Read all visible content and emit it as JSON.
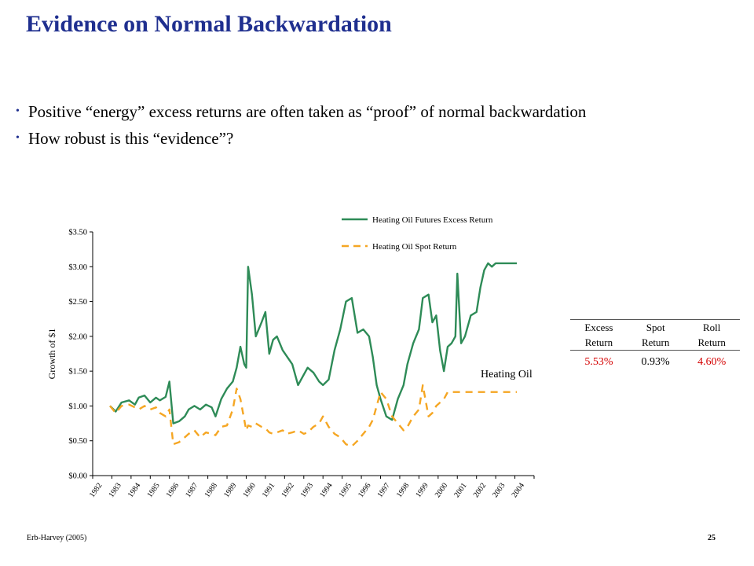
{
  "slide": {
    "title": "Evidence on Normal Backwardation",
    "bullets": [
      "Positive “energy” excess returns are often taken as “proof” of normal backwardation",
      "How robust is this “evidence”?"
    ],
    "footer_left": "Erb-Harvey (2005)",
    "page_number": "25"
  },
  "chart_data": {
    "type": "line",
    "ylabel": "Growth of $1",
    "annotation": "Heating Oil",
    "yticks": [
      "$0.00",
      "$0.50",
      "$1.00",
      "$1.50",
      "$2.00",
      "$2.50",
      "$3.00",
      "$3.50"
    ],
    "ylim": [
      0,
      3.5
    ],
    "xticks": [
      "1982",
      "1983",
      "1984",
      "1985",
      "1986",
      "1987",
      "1988",
      "1989",
      "1990",
      "1991",
      "1992",
      "1993",
      "1994",
      "1995",
      "1996",
      "1997",
      "1998",
      "1999",
      "2000",
      "2001",
      "2002",
      "2003",
      "2004"
    ],
    "x": [
      1982.9,
      1983.2,
      1983.5,
      1983.9,
      1984.2,
      1984.4,
      1984.7,
      1985.0,
      1985.3,
      1985.5,
      1985.8,
      1986.0,
      1986.2,
      1986.5,
      1986.8,
      1987.0,
      1987.3,
      1987.6,
      1987.9,
      1988.2,
      1988.4,
      1988.7,
      1989.0,
      1989.3,
      1989.5,
      1989.7,
      1989.9,
      1990.0,
      1990.1,
      1990.3,
      1990.5,
      1990.8,
      1991.0,
      1991.2,
      1991.4,
      1991.6,
      1991.9,
      1992.1,
      1992.4,
      1992.7,
      1993.0,
      1993.2,
      1993.5,
      1993.8,
      1994.0,
      1994.3,
      1994.6,
      1994.9,
      1995.2,
      1995.5,
      1995.8,
      1996.1,
      1996.4,
      1996.6,
      1996.8,
      1997.0,
      1997.3,
      1997.6,
      1997.9,
      1998.2,
      1998.4,
      1998.7,
      1999.0,
      1999.2,
      1999.5,
      1999.7,
      1999.9,
      2000.1,
      2000.3,
      2000.5,
      2000.7,
      2000.9,
      2001.0,
      2001.2,
      2001.4,
      2001.7,
      2002.0,
      2002.2,
      2002.4,
      2002.6,
      2002.8,
      2003.0,
      2003.3,
      2003.6,
      2003.9,
      2004.1
    ],
    "series": [
      {
        "name": "Heating Oil Futures Excess Return",
        "color": "#2e8b57",
        "style": "solid",
        "values": [
          1.0,
          0.92,
          1.05,
          1.08,
          1.02,
          1.12,
          1.15,
          1.05,
          1.12,
          1.08,
          1.13,
          1.35,
          0.75,
          0.78,
          0.85,
          0.95,
          1.0,
          0.95,
          1.02,
          0.98,
          0.85,
          1.1,
          1.25,
          1.35,
          1.55,
          1.85,
          1.6,
          1.55,
          3.0,
          2.6,
          2.0,
          2.2,
          2.35,
          1.75,
          1.95,
          2.0,
          1.8,
          1.72,
          1.6,
          1.3,
          1.45,
          1.55,
          1.48,
          1.35,
          1.3,
          1.38,
          1.8,
          2.1,
          2.5,
          2.55,
          2.05,
          2.1,
          2.0,
          1.7,
          1.3,
          1.1,
          0.85,
          0.8,
          1.1,
          1.3,
          1.6,
          1.9,
          2.1,
          2.55,
          2.6,
          2.2,
          2.3,
          1.8,
          1.5,
          1.85,
          1.9,
          2.0,
          2.9,
          1.9,
          2.0,
          2.3,
          2.35,
          2.7,
          2.95,
          3.05,
          3.0,
          3.05,
          3.05,
          3.05,
          3.05,
          3.05
        ]
      },
      {
        "name": "Heating Oil Spot Return",
        "color": "#f5a623",
        "style": "dashed",
        "values": [
          1.0,
          0.9,
          1.0,
          1.02,
          0.98,
          0.95,
          1.0,
          0.95,
          0.98,
          0.9,
          0.85,
          0.95,
          0.45,
          0.48,
          0.55,
          0.6,
          0.65,
          0.55,
          0.62,
          0.6,
          0.58,
          0.7,
          0.72,
          0.95,
          1.25,
          1.1,
          0.8,
          0.65,
          0.72,
          0.7,
          0.75,
          0.7,
          0.68,
          0.62,
          0.6,
          0.62,
          0.65,
          0.6,
          0.62,
          0.65,
          0.6,
          0.62,
          0.7,
          0.75,
          0.85,
          0.7,
          0.6,
          0.55,
          0.45,
          0.42,
          0.5,
          0.6,
          0.7,
          0.8,
          1.0,
          1.2,
          1.1,
          0.85,
          0.75,
          0.65,
          0.7,
          0.85,
          0.95,
          1.3,
          0.85,
          0.9,
          1.0,
          1.05,
          1.1,
          1.2,
          1.2,
          1.2,
          1.2,
          1.2,
          1.2,
          1.2,
          1.2,
          1.2,
          1.2,
          1.2,
          1.2,
          1.2,
          1.2,
          1.2,
          1.2,
          1.2
        ]
      }
    ],
    "legend_placement": "top",
    "grid": false,
    "table": {
      "headers": [
        [
          "Excess",
          "Return"
        ],
        [
          "Spot",
          "Return"
        ],
        [
          "Roll",
          "Return"
        ]
      ],
      "values": [
        "5.53%",
        "0.93%",
        "4.60%"
      ],
      "highlight_color": "#d40000"
    }
  }
}
